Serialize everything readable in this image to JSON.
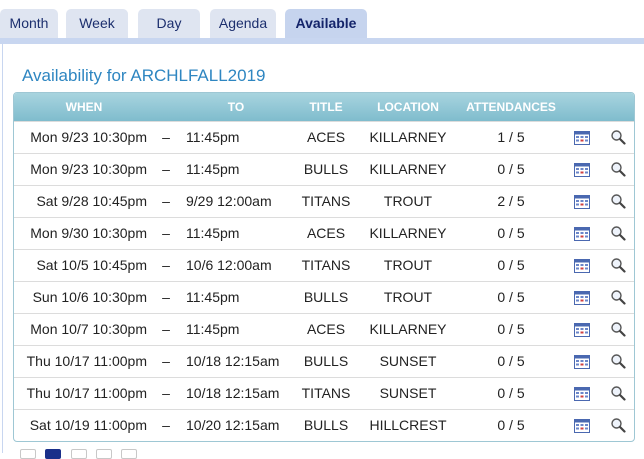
{
  "tabs": [
    {
      "label": "Month"
    },
    {
      "label": "Week"
    },
    {
      "label": "Day"
    },
    {
      "label": "Agenda"
    },
    {
      "label": "Available"
    }
  ],
  "heading": "Availability for ARCHLFALL2019",
  "columns": {
    "when": "WHEN",
    "to": "TO",
    "title": "TITLE",
    "location": "LOCATION",
    "attendances": "ATTENDANCES"
  },
  "rows": [
    {
      "when": "Mon 9/23 10:30pm",
      "dash": "–",
      "to": "11:45pm",
      "title": "ACES",
      "location": "KILLARNEY",
      "attendances": "1 / 5"
    },
    {
      "when": "Mon 9/23 10:30pm",
      "dash": "–",
      "to": "11:45pm",
      "title": "BULLS",
      "location": "KILLARNEY",
      "attendances": "0 / 5"
    },
    {
      "when": "Sat 9/28 10:45pm",
      "dash": "–",
      "to": "9/29 12:00am",
      "title": "TITANS",
      "location": "TROUT",
      "attendances": "2 / 5"
    },
    {
      "when": "Mon 9/30 10:30pm",
      "dash": "–",
      "to": "11:45pm",
      "title": "ACES",
      "location": "KILLARNEY",
      "attendances": "0 / 5"
    },
    {
      "when": "Sat 10/5 10:45pm",
      "dash": "–",
      "to": "10/6 12:00am",
      "title": "TITANS",
      "location": "TROUT",
      "attendances": "0 / 5"
    },
    {
      "when": "Sun 10/6 10:30pm",
      "dash": "–",
      "to": "11:45pm",
      "title": "BULLS",
      "location": "TROUT",
      "attendances": "0 / 5"
    },
    {
      "when": "Mon 10/7 10:30pm",
      "dash": "–",
      "to": "11:45pm",
      "title": "ACES",
      "location": "KILLARNEY",
      "attendances": "0 / 5"
    },
    {
      "when": "Thu 10/17 11:00pm",
      "dash": "–",
      "to": "10/18 12:15am",
      "title": "BULLS",
      "location": "SUNSET",
      "attendances": "0 / 5"
    },
    {
      "when": "Thu 10/17 11:00pm",
      "dash": "–",
      "to": "10/18 12:15am",
      "title": "TITANS",
      "location": "SUNSET",
      "attendances": "0 / 5"
    },
    {
      "when": "Sat 10/19 11:00pm",
      "dash": "–",
      "to": "10/20 12:15am",
      "title": "BULLS",
      "location": "HILLCREST",
      "attendances": "0 / 5"
    }
  ],
  "icons": {
    "calendar": "calendar-icon",
    "search": "magnifier-icon"
  },
  "colors": {
    "accent": "#2e86c1",
    "header": "#8cc4d3",
    "active_tab": "#c6d4ee",
    "page_active": "#1a2f8a"
  }
}
